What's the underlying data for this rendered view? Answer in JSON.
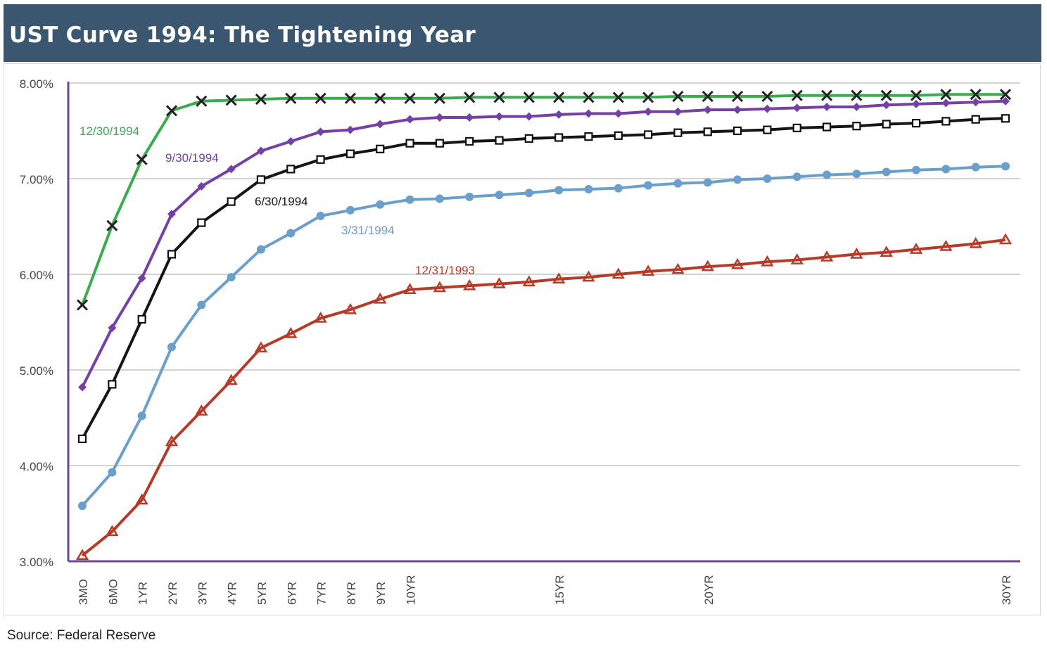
{
  "header": {
    "title": "UST Curve 1994: The Tightening Year"
  },
  "footer": {
    "source": "Source: Federal Reserve"
  },
  "chart_data": {
    "type": "line",
    "title": "UST Curve 1994: The Tightening Year",
    "xlabel": "",
    "ylabel": "",
    "ylim": [
      3.0,
      8.0
    ],
    "yticks": [
      "3.00%",
      "4.00%",
      "5.00%",
      "6.00%",
      "7.00%",
      "8.00%"
    ],
    "ytick_values": [
      3,
      4,
      5,
      6,
      7,
      8
    ],
    "grid": true,
    "legend": "inline labels",
    "categories": [
      "3MO",
      "6MO",
      "1YR",
      "2YR",
      "3YR",
      "4YR",
      "5YR",
      "6YR",
      "7YR",
      "8YR",
      "9YR",
      "10YR",
      "11YR",
      "12YR",
      "13YR",
      "14YR",
      "15YR",
      "16YR",
      "17YR",
      "18YR",
      "19YR",
      "20YR",
      "21YR",
      "22YR",
      "23YR",
      "24YR",
      "25YR",
      "26YR",
      "27YR",
      "28YR",
      "29YR",
      "30YR"
    ],
    "tick_labels": [
      "3MO",
      "6MO",
      "1YR",
      "2YR",
      "3YR",
      "4YR",
      "5YR",
      "6YR",
      "7YR",
      "8YR",
      "9YR",
      "10YR",
      "",
      "",
      "",
      "",
      "15YR",
      "",
      "",
      "",
      "",
      "20YR",
      "",
      "",
      "",
      "",
      "",
      "",
      "",
      "",
      "",
      "30YR"
    ],
    "series": [
      {
        "name": "12/30/1994",
        "color": "#3aab4e",
        "marker": "x",
        "values": [
          5.68,
          6.51,
          7.2,
          7.71,
          7.81,
          7.82,
          7.83,
          7.84,
          7.84,
          7.84,
          7.84,
          7.84,
          7.84,
          7.85,
          7.85,
          7.85,
          7.85,
          7.85,
          7.85,
          7.85,
          7.86,
          7.86,
          7.86,
          7.86,
          7.87,
          7.87,
          7.87,
          7.87,
          7.87,
          7.88,
          7.88,
          7.88
        ]
      },
      {
        "name": "9/30/1994",
        "color": "#7540a6",
        "marker": "diamond",
        "values": [
          4.82,
          5.44,
          5.96,
          6.63,
          6.92,
          7.1,
          7.29,
          7.39,
          7.49,
          7.51,
          7.57,
          7.62,
          7.64,
          7.64,
          7.65,
          7.65,
          7.67,
          7.68,
          7.68,
          7.7,
          7.7,
          7.72,
          7.72,
          7.73,
          7.74,
          7.75,
          7.75,
          7.77,
          7.78,
          7.79,
          7.8,
          7.81
        ]
      },
      {
        "name": "6/30/1994",
        "color": "#151515",
        "marker": "square",
        "values": [
          4.28,
          4.85,
          5.53,
          6.21,
          6.54,
          6.76,
          6.99,
          7.1,
          7.2,
          7.26,
          7.31,
          7.37,
          7.37,
          7.39,
          7.4,
          7.42,
          7.43,
          7.44,
          7.45,
          7.46,
          7.48,
          7.49,
          7.5,
          7.51,
          7.53,
          7.54,
          7.55,
          7.57,
          7.58,
          7.6,
          7.62,
          7.63
        ]
      },
      {
        "name": "3/31/1994",
        "color": "#6a9fcb",
        "marker": "circle",
        "values": [
          3.58,
          3.93,
          4.52,
          5.24,
          5.68,
          5.97,
          6.26,
          6.43,
          6.61,
          6.67,
          6.73,
          6.78,
          6.79,
          6.81,
          6.83,
          6.85,
          6.88,
          6.89,
          6.9,
          6.93,
          6.95,
          6.96,
          6.99,
          7.0,
          7.02,
          7.04,
          7.05,
          7.07,
          7.09,
          7.1,
          7.12,
          7.13
        ]
      },
      {
        "name": "12/31/1993",
        "color": "#b53b28",
        "marker": "triangle",
        "values": [
          3.06,
          3.31,
          3.64,
          4.25,
          4.57,
          4.89,
          5.23,
          5.38,
          5.54,
          5.63,
          5.74,
          5.84,
          5.86,
          5.88,
          5.9,
          5.92,
          5.95,
          5.97,
          6.0,
          6.03,
          6.05,
          6.08,
          6.1,
          6.13,
          6.15,
          6.18,
          6.21,
          6.23,
          6.26,
          6.29,
          6.32,
          6.36
        ]
      }
    ]
  }
}
